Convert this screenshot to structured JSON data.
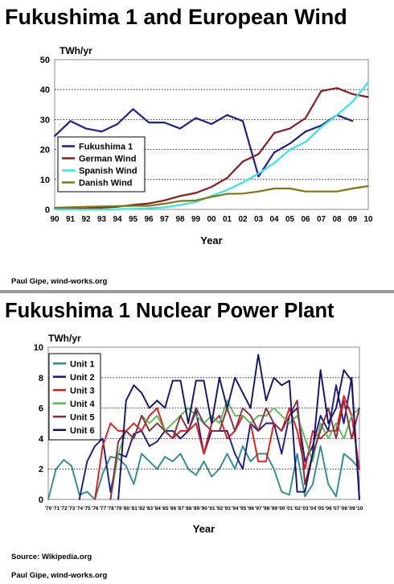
{
  "chart_data": [
    {
      "type": "line",
      "title": "Fukushima 1 and European Wind",
      "ylabel": "TWh/yr",
      "xlabel": "Year",
      "ylim": [
        0,
        50
      ],
      "yticks": [
        0,
        10,
        20,
        30,
        40,
        50
      ],
      "grid": "horizontal dotted",
      "legend": "bottom-left",
      "categories": [
        "90",
        "91",
        "92",
        "93",
        "94",
        "95",
        "96",
        "97",
        "98",
        "99",
        "00",
        "01",
        "02",
        "03",
        "04",
        "05",
        "06",
        "07",
        "08",
        "09",
        "10"
      ],
      "series": [
        {
          "name": "Fukushima 1",
          "color": "#1f1f8f",
          "values": [
            24.5,
            29.5,
            27,
            26,
            28.5,
            33.5,
            29,
            29,
            27,
            30.5,
            28.5,
            31.5,
            29.5,
            11,
            19,
            22,
            26,
            28,
            31.5,
            29.5,
            null
          ]
        },
        {
          "name": "German Wind",
          "color": "#8b1c1c",
          "values": [
            0.1,
            0.2,
            0.3,
            0.6,
            0.9,
            1.5,
            2.0,
            3.0,
            4.5,
            5.5,
            7.5,
            10.5,
            16,
            18.5,
            25.5,
            27,
            30.5,
            39.5,
            40.5,
            38.5,
            37.5
          ]
        },
        {
          "name": "Spanish Wind",
          "color": "#33e6e6",
          "values": [
            0,
            0,
            0,
            0,
            0.1,
            0.2,
            0.4,
            0.7,
            1.5,
            2.5,
            4.5,
            6.5,
            9,
            12,
            15.5,
            20,
            22.5,
            27.5,
            31.5,
            36,
            42.5
          ]
        },
        {
          "name": "Danish Wind",
          "color": "#7a7a12",
          "values": [
            0.6,
            0.7,
            0.9,
            1.0,
            1.1,
            1.2,
            1.2,
            1.9,
            2.8,
            3.0,
            4.2,
            5.2,
            5.3,
            6.0,
            7.0,
            7.0,
            6.0,
            6.0,
            6.0,
            7.0,
            7.8
          ]
        }
      ],
      "credit": "Paul Gipe, wind-works.org"
    },
    {
      "type": "line",
      "title": "Fukushima 1 Nuclear Power Plant",
      "ylabel": "TWh/yr",
      "xlabel": "Year",
      "ylim": [
        0,
        10
      ],
      "yticks": [
        0,
        2,
        4,
        6,
        8,
        10
      ],
      "grid": "horizontal dotted",
      "legend": "top-left",
      "categories": [
        "'70",
        "'71",
        "'72",
        "'73",
        "'74",
        "'75",
        "'76",
        "'77",
        "'78",
        "'79",
        "'80",
        "'81",
        "'82",
        "'83",
        "'84",
        "'85",
        "'86",
        "'87",
        "'88",
        "'89",
        "'90",
        "'91",
        "'92",
        "'93",
        "'94",
        "'95",
        "'96",
        "'97",
        "'98",
        "'99",
        "'00",
        "'01",
        "'02",
        "'03",
        "'04",
        "'05",
        "'06",
        "'07",
        "'08",
        "'09",
        "'10"
      ],
      "series": [
        {
          "name": "Unit 1",
          "color": "#2e8b8b",
          "values": [
            0,
            2,
            2.6,
            2.2,
            0.3,
            0.5,
            0,
            1.7,
            2.8,
            2.7,
            2.2,
            1.0,
            3.0,
            2.5,
            2.0,
            2.8,
            2.5,
            3.0,
            2.0,
            1.6,
            2.5,
            1.5,
            2.0,
            3.0,
            2.0,
            3.5,
            2.5,
            3.0,
            3.0,
            2.0,
            0.5,
            0.3,
            3.0,
            0.2,
            1.0,
            3.5,
            1.0,
            0.2,
            3.0,
            2.6,
            2.0
          ]
        },
        {
          "name": "Unit 2",
          "color": "#1a1a8c",
          "values": [
            null,
            null,
            null,
            null,
            0,
            2.5,
            3.5,
            4.0,
            0.5,
            3.0,
            2.8,
            4.3,
            4.5,
            3.5,
            3.8,
            4.5,
            4.5,
            4.0,
            4.5,
            5.8,
            3.0,
            4.5,
            4.5,
            4.5,
            3.0,
            2.0,
            5.0,
            4.5,
            5.0,
            5.0,
            3.0,
            5.5,
            6.0,
            2.5,
            3.5,
            5.5,
            4.5,
            7.5,
            5.0,
            8.0,
            0
          ]
        },
        {
          "name": "Unit 3",
          "color": "#e41a1a",
          "values": [
            null,
            null,
            null,
            null,
            null,
            null,
            0,
            3.5,
            5.0,
            4.5,
            4.5,
            5.0,
            4.5,
            5.5,
            6.0,
            4.5,
            4.0,
            4.5,
            4.5,
            5.0,
            3.0,
            5.0,
            5.5,
            4.0,
            4.5,
            5.5,
            5.0,
            2.5,
            2.5,
            5.0,
            4.5,
            6.0,
            4.5,
            2.0,
            4.5,
            4.0,
            4.5,
            4.5,
            6.8,
            5.5,
            2.0
          ]
        },
        {
          "name": "Unit 4",
          "color": "#55bb55",
          "values": [
            null,
            null,
            null,
            null,
            null,
            null,
            null,
            null,
            0,
            3.0,
            4.5,
            4.0,
            5.5,
            5.0,
            5.5,
            4.5,
            5.0,
            5.5,
            6.0,
            5.5,
            5.0,
            5.5,
            5.0,
            6.5,
            5.5,
            5.5,
            5.0,
            5.5,
            5.5,
            6.0,
            5.5,
            5.0,
            5.5,
            4.0,
            2.5,
            5.0,
            4.0,
            5.0,
            4.0,
            5.5,
            6.0
          ]
        },
        {
          "name": "Unit 5",
          "color": "#8b2c3c",
          "values": [
            null,
            null,
            null,
            null,
            null,
            null,
            null,
            null,
            0,
            3.8,
            4.5,
            4.0,
            5.5,
            4.5,
            5.0,
            4.5,
            4.0,
            5.5,
            4.5,
            6.0,
            5.0,
            4.5,
            4.5,
            6.0,
            4.5,
            6.0,
            5.5,
            4.5,
            6.0,
            5.0,
            4.5,
            5.5,
            6.5,
            1.0,
            3.0,
            4.5,
            6.0,
            4.0,
            6.5,
            4.0,
            6.0
          ]
        },
        {
          "name": "Unit 6",
          "color": "#101070",
          "values": [
            null,
            null,
            null,
            null,
            null,
            null,
            null,
            null,
            null,
            0,
            6.5,
            7.5,
            7.0,
            6.0,
            6.5,
            6.0,
            7.8,
            7.8,
            5.0,
            7.8,
            7.8,
            5.0,
            8.0,
            6.0,
            8.0,
            7.0,
            6.0,
            9.5,
            6.5,
            8.0,
            7.5,
            7.8,
            0.5,
            0.5,
            3.0,
            8.5,
            5.0,
            6.0,
            8.5,
            7.8,
            0
          ]
        }
      ],
      "source": "Source: Wikipedia.org",
      "credit": "Paul Gipe, wind-works.org"
    }
  ]
}
